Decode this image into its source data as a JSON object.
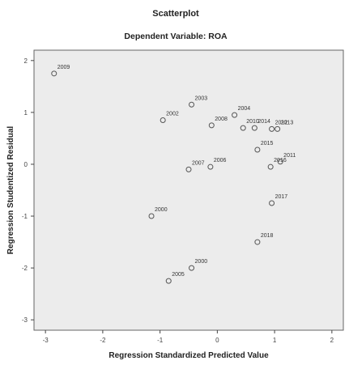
{
  "chart_data": {
    "type": "scatter",
    "title": "Scatterplot",
    "subtitle": "Dependent Variable: ROA",
    "xlabel": "Regression Standardized Predicted Value",
    "ylabel": "Regression Studentized Residual",
    "xlim": [
      -3.2,
      2.2
    ],
    "ylim": [
      -3.2,
      2.2
    ],
    "xticks": [
      -3,
      -2,
      -1,
      0,
      1,
      2
    ],
    "yticks": [
      -3,
      -2,
      -1,
      0,
      1,
      2
    ],
    "xtick_labels": [
      "-3",
      "-2",
      "-1",
      "0",
      "1",
      "2"
    ],
    "ytick_labels": [
      "-3",
      "-2",
      "-1",
      "0",
      "1",
      "2"
    ],
    "grid": false,
    "background": "#ececec",
    "marker_color": "#555555",
    "points": [
      {
        "label": "2009",
        "x": -2.85,
        "y": 1.75
      },
      {
        "label": "2003",
        "x": -0.45,
        "y": 1.15
      },
      {
        "label": "2002",
        "x": -0.95,
        "y": 0.85
      },
      {
        "label": "2008",
        "x": -0.1,
        "y": 0.75
      },
      {
        "label": "2004",
        "x": 0.3,
        "y": 0.95
      },
      {
        "label": "2014",
        "x": 0.65,
        "y": 0.7
      },
      {
        "label": "2012",
        "x": 0.95,
        "y": 0.68
      },
      {
        "label": "2010",
        "x": 0.45,
        "y": 0.7
      },
      {
        "label": "2015",
        "x": 0.7,
        "y": 0.28
      },
      {
        "label": "2013",
        "x": 1.05,
        "y": 0.68
      },
      {
        "label": "2011",
        "x": 1.1,
        "y": 0.05
      },
      {
        "label": "2016",
        "x": 0.93,
        "y": -0.05
      },
      {
        "label": "2007",
        "x": -0.5,
        "y": -0.1
      },
      {
        "label": "2006",
        "x": -0.12,
        "y": -0.05
      },
      {
        "label": "2017",
        "x": 0.95,
        "y": -0.75
      },
      {
        "label": "2000",
        "x": -1.15,
        "y": -1.0
      },
      {
        "label": "2018",
        "x": 0.7,
        "y": -1.5
      },
      {
        "label": "2000",
        "x": -0.45,
        "y": -2.0
      },
      {
        "label": "2005",
        "x": -0.85,
        "y": -2.25
      }
    ]
  }
}
